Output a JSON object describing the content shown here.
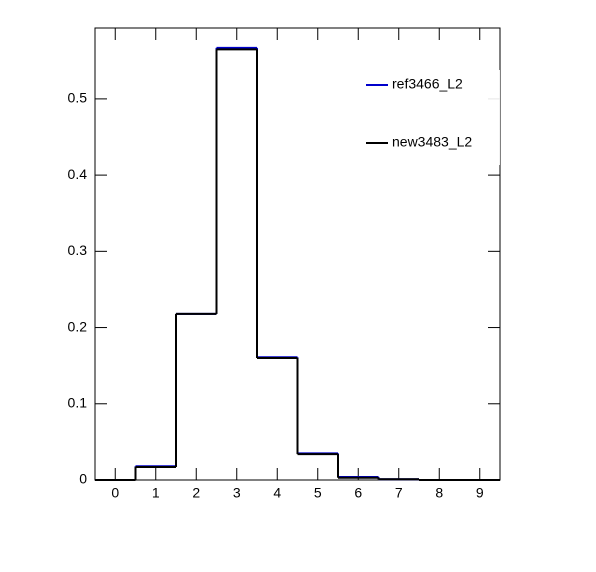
{
  "chart_data": {
    "type": "histogram",
    "bins": [
      -0.5,
      0.5,
      1.5,
      2.5,
      3.5,
      4.5,
      5.5,
      6.5,
      7.5,
      8.5,
      9.5
    ],
    "series": [
      {
        "name": "ref3466_L2",
        "color": "#0000cc",
        "values": [
          0,
          0.018,
          0.218,
          0.567,
          0.161,
          0.035,
          0.004,
          0.001,
          0,
          0
        ]
      },
      {
        "name": "new3483_L2",
        "color": "#000000",
        "values": [
          0,
          0.017,
          0.218,
          0.565,
          0.16,
          0.034,
          0.003,
          0.001,
          0,
          0
        ]
      }
    ],
    "xlim": [
      -0.5,
      9.5
    ],
    "xticks": [
      0,
      1,
      2,
      3,
      4,
      5,
      6,
      7,
      8,
      9
    ],
    "ylim": [
      0,
      0.593
    ],
    "yticks": [
      0,
      0.1,
      0.2,
      0.3,
      0.4,
      0.5
    ],
    "legend": "top-right"
  }
}
